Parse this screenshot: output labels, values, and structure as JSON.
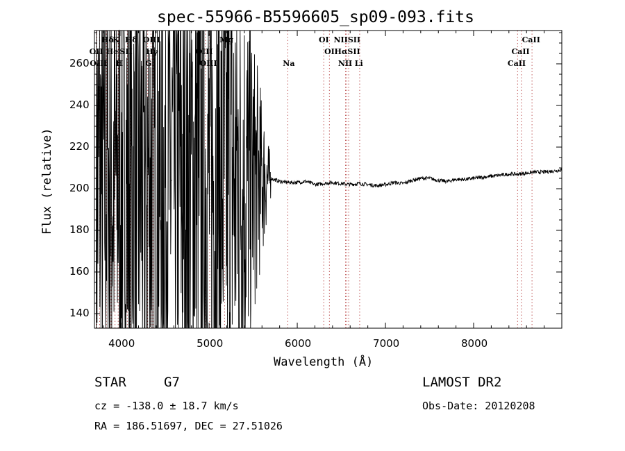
{
  "chart_data": {
    "type": "line",
    "title": "spec-55966-B5596605_sp09-093.fits",
    "xlabel": "Wavelength (Å)",
    "ylabel": "Flux (relative)",
    "xlim": [
      3700,
      9000
    ],
    "ylim": [
      133,
      276
    ],
    "xticks": [
      4000,
      5000,
      6000,
      7000,
      8000
    ],
    "yticks": [
      140,
      160,
      180,
      200,
      220,
      240,
      260
    ],
    "grid": false,
    "noise_region": [
      3720,
      5700
    ],
    "continuum": [
      [
        5700,
        205
      ],
      [
        5800,
        203.5
      ],
      [
        5900,
        203
      ],
      [
        6000,
        203
      ],
      [
        6100,
        203.5
      ],
      [
        6200,
        202
      ],
      [
        6300,
        202.5
      ],
      [
        6400,
        203
      ],
      [
        6500,
        202.5
      ],
      [
        6600,
        202
      ],
      [
        6700,
        202.5
      ],
      [
        6800,
        202
      ],
      [
        6900,
        201.5
      ],
      [
        7000,
        202
      ],
      [
        7100,
        203
      ],
      [
        7200,
        202.5
      ],
      [
        7300,
        204
      ],
      [
        7400,
        205
      ],
      [
        7500,
        205
      ],
      [
        7600,
        204
      ],
      [
        7700,
        203.5
      ],
      [
        7800,
        204.5
      ],
      [
        7900,
        204.5
      ],
      [
        8000,
        205
      ],
      [
        8100,
        205.5
      ],
      [
        8200,
        206
      ],
      [
        8300,
        206.5
      ],
      [
        8400,
        207
      ],
      [
        8500,
        207
      ],
      [
        8600,
        207.5
      ],
      [
        8700,
        208
      ],
      [
        8800,
        208
      ],
      [
        8900,
        208.5
      ],
      [
        9000,
        209
      ]
    ],
    "spectral_lines": [
      {
        "label": "Hδ",
        "x": 3835,
        "row": 0
      },
      {
        "label": "K",
        "x": 3934,
        "row": 0
      },
      {
        "label": "Hδ",
        "x": 4102,
        "row": 0
      },
      {
        "label": "OIII",
        "x": 4363,
        "row": 0
      },
      {
        "label": "Mg",
        "x": 5175,
        "row": 0
      },
      {
        "label": "OI",
        "x": 6300,
        "row": 0
      },
      {
        "label": "NIISII",
        "x": 6583,
        "row": 0
      },
      {
        "label": "CaII",
        "x": 8662,
        "row": 0
      },
      {
        "label": "OII",
        "x": 3727,
        "row": 1
      },
      {
        "label": "He",
        "x": 3889,
        "row": 1
      },
      {
        "label": "SII",
        "x": 4072,
        "row": 1
      },
      {
        "label": "Hγ",
        "x": 4340,
        "row": 1
      },
      {
        "label": "OIII",
        "x": 4959,
        "row": 1
      },
      {
        "label": "OI",
        "x": 6364,
        "row": 1
      },
      {
        "label": "HαSII",
        "x": 6563,
        "row": 1
      },
      {
        "label": "CaII",
        "x": 8542,
        "row": 1
      },
      {
        "label": "OIII",
        "x": 3760,
        "row": 2
      },
      {
        "label": "H",
        "x": 3969,
        "row": 2
      },
      {
        "label": "G",
        "x": 4304,
        "row": 2
      },
      {
        "label": "OIII",
        "x": 5007,
        "row": 2
      },
      {
        "label": "Na",
        "x": 5893,
        "row": 2
      },
      {
        "label": "NII",
        "x": 6548,
        "row": 2
      },
      {
        "label": "Li",
        "x": 6708,
        "row": 2
      },
      {
        "label": "CaII",
        "x": 8498,
        "row": 2
      }
    ]
  },
  "info": {
    "object_class": "STAR",
    "subclass": "G7",
    "survey": "LAMOST DR2",
    "redshift": "cz = -138.0 ± 18.7 km/s",
    "obs_date": "Obs-Date: 20120208",
    "coords": "RA = 186.51697, DEC =  27.51026"
  }
}
